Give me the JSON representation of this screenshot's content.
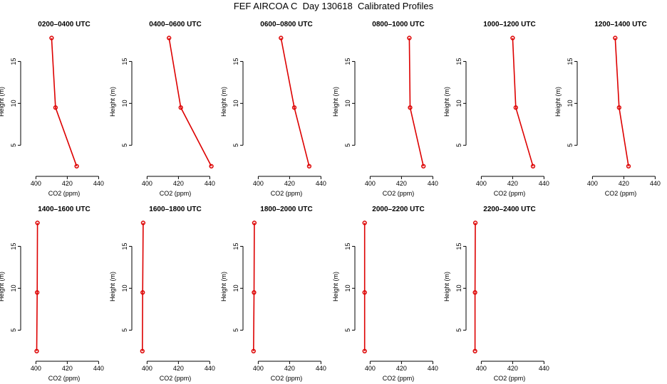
{
  "figure_title": "FEF AIRCOA C  Day 130618  Calibrated Profiles",
  "colors": {
    "profile": "#dd0000",
    "axis": "#000000"
  },
  "chart_data": [
    {
      "type": "line",
      "title": "0200–0400 UTC",
      "xlabel": "CO2 (ppm)",
      "ylabel": "Height (m)",
      "xlim": [
        393,
        443
      ],
      "ylim": [
        1.8,
        18.6
      ],
      "xticks": [
        "400",
        "420",
        "440"
      ],
      "yticks": [
        "5",
        "10",
        "15"
      ],
      "series": [
        {
          "x": [
            426.0,
            412.5,
            410.0
          ],
          "y": [
            2.5,
            9.5,
            17.8
          ]
        }
      ]
    },
    {
      "type": "line",
      "title": "0400–0600 UTC",
      "xlabel": "CO2 (ppm)",
      "ylabel": "Height (m)",
      "xlim": [
        393,
        443
      ],
      "ylim": [
        1.8,
        18.6
      ],
      "xticks": [
        "400",
        "420",
        "440"
      ],
      "yticks": [
        "5",
        "10",
        "15"
      ],
      "series": [
        {
          "x": [
            441.0,
            421.5,
            414.0
          ],
          "y": [
            2.5,
            9.5,
            17.8
          ]
        }
      ]
    },
    {
      "type": "line",
      "title": "0600–0800 UTC",
      "xlabel": "CO2 (ppm)",
      "ylabel": "Height (m)",
      "xlim": [
        393,
        443
      ],
      "ylim": [
        1.8,
        18.6
      ],
      "xticks": [
        "400",
        "420",
        "440"
      ],
      "yticks": [
        "5",
        "10",
        "15"
      ],
      "series": [
        {
          "x": [
            432.5,
            423.0,
            414.5
          ],
          "y": [
            2.5,
            9.5,
            17.8
          ]
        }
      ]
    },
    {
      "type": "line",
      "title": "0800–1000 UTC",
      "xlabel": "CO2 (ppm)",
      "ylabel": "Height (m)",
      "xlim": [
        393,
        443
      ],
      "ylim": [
        1.8,
        18.6
      ],
      "xticks": [
        "400",
        "420",
        "440"
      ],
      "yticks": [
        "5",
        "10",
        "15"
      ],
      "series": [
        {
          "x": [
            434.0,
            425.5,
            425.0
          ],
          "y": [
            2.5,
            9.5,
            17.8
          ]
        }
      ]
    },
    {
      "type": "line",
      "title": "1000–1200 UTC",
      "xlabel": "CO2 (ppm)",
      "ylabel": "Height (m)",
      "xlim": [
        393,
        443
      ],
      "ylim": [
        1.8,
        18.6
      ],
      "xticks": [
        "400",
        "420",
        "440"
      ],
      "yticks": [
        "5",
        "10",
        "15"
      ],
      "series": [
        {
          "x": [
            433.0,
            422.0,
            420.0
          ],
          "y": [
            2.5,
            9.5,
            17.8
          ]
        }
      ]
    },
    {
      "type": "line",
      "title": "1200–1400 UTC",
      "xlabel": "CO2 (ppm)",
      "ylabel": "Height (m)",
      "xlim": [
        393,
        443
      ],
      "ylim": [
        1.8,
        18.6
      ],
      "xticks": [
        "400",
        "420",
        "440"
      ],
      "yticks": [
        "5",
        "10",
        "15"
      ],
      "series": [
        {
          "x": [
            423.0,
            417.0,
            414.5
          ],
          "y": [
            2.5,
            9.5,
            17.8
          ]
        }
      ]
    },
    {
      "type": "line",
      "title": "1400–1600 UTC",
      "xlabel": "CO2 (ppm)",
      "ylabel": "Height (m)",
      "xlim": [
        393,
        443
      ],
      "ylim": [
        1.8,
        18.6
      ],
      "xticks": [
        "400",
        "420",
        "440"
      ],
      "yticks": [
        "5",
        "10",
        "15"
      ],
      "series": [
        {
          "x": [
            400.5,
            400.8,
            401.0
          ],
          "y": [
            2.5,
            9.5,
            17.8
          ]
        }
      ]
    },
    {
      "type": "line",
      "title": "1600–1800 UTC",
      "xlabel": "CO2 (ppm)",
      "ylabel": "Height (m)",
      "xlim": [
        393,
        443
      ],
      "ylim": [
        1.8,
        18.6
      ],
      "xticks": [
        "400",
        "420",
        "440"
      ],
      "yticks": [
        "5",
        "10",
        "15"
      ],
      "series": [
        {
          "x": [
            397.0,
            397.2,
            397.5
          ],
          "y": [
            2.5,
            9.5,
            17.8
          ]
        }
      ]
    },
    {
      "type": "line",
      "title": "1800–2000 UTC",
      "xlabel": "CO2 (ppm)",
      "ylabel": "Height (m)",
      "xlim": [
        393,
        443
      ],
      "ylim": [
        1.8,
        18.6
      ],
      "xticks": [
        "400",
        "420",
        "440"
      ],
      "yticks": [
        "5",
        "10",
        "15"
      ],
      "series": [
        {
          "x": [
            397.0,
            397.3,
            397.5
          ],
          "y": [
            2.5,
            9.5,
            17.8
          ]
        }
      ]
    },
    {
      "type": "line",
      "title": "2000–2200 UTC",
      "xlabel": "CO2 (ppm)",
      "ylabel": "Height (m)",
      "xlim": [
        393,
        443
      ],
      "ylim": [
        1.8,
        18.6
      ],
      "xticks": [
        "400",
        "420",
        "440"
      ],
      "yticks": [
        "5",
        "10",
        "15"
      ],
      "series": [
        {
          "x": [
            396.5,
            396.5,
            396.5
          ],
          "y": [
            2.5,
            9.5,
            17.8
          ]
        }
      ]
    },
    {
      "type": "line",
      "title": "2200–2400 UTC",
      "xlabel": "CO2 (ppm)",
      "ylabel": "Height (m)",
      "xlim": [
        393,
        443
      ],
      "ylim": [
        1.8,
        18.6
      ],
      "xticks": [
        "400",
        "420",
        "440"
      ],
      "yticks": [
        "5",
        "10",
        "15"
      ],
      "series": [
        {
          "x": [
            396.0,
            396.0,
            396.2
          ],
          "y": [
            2.5,
            9.5,
            17.8
          ]
        }
      ]
    }
  ]
}
